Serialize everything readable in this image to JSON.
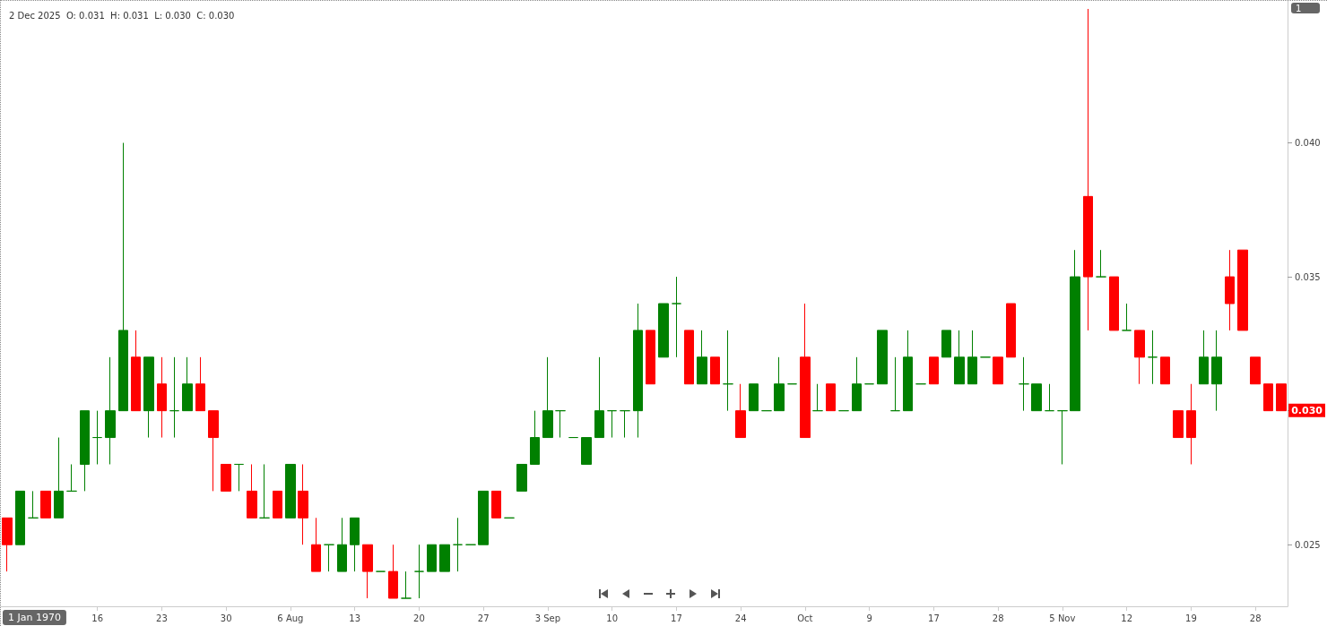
{
  "chart_data": {
    "type": "candlestick",
    "title": "2 Dec 2025  O: 0.031  H: 0.031  L: 0.030  C: 0.030",
    "categories": [
      null,
      null,
      null,
      null,
      null,
      null,
      null,
      "16",
      null,
      null,
      null,
      null,
      "23",
      null,
      null,
      null,
      null,
      "30",
      null,
      null,
      null,
      null,
      "6 Aug",
      null,
      null,
      null,
      null,
      "13",
      null,
      null,
      null,
      null,
      "20",
      null,
      null,
      null,
      null,
      "27",
      null,
      null,
      null,
      null,
      "3 Sep",
      null,
      null,
      null,
      null,
      "10",
      null,
      null,
      null,
      null,
      "17",
      null,
      null,
      null,
      null,
      "24",
      null,
      null,
      null,
      null,
      "Oct",
      null,
      null,
      null,
      null,
      "9",
      null,
      null,
      null,
      null,
      "17",
      null,
      null,
      null,
      null,
      "28",
      null,
      null,
      null,
      null,
      "5 Nov",
      null,
      null,
      null,
      null,
      "12",
      null,
      null,
      null,
      null,
      "19",
      null,
      null,
      null,
      null,
      "28",
      null,
      null
    ],
    "ohlc": [
      [
        0.026,
        0.026,
        0.024,
        0.025
      ],
      [
        0.025,
        0.027,
        0.025,
        0.027
      ],
      [
        0.026,
        0.027,
        0.026,
        0.026
      ],
      [
        0.027,
        0.027,
        0.026,
        0.026
      ],
      [
        0.026,
        0.029,
        0.026,
        0.027
      ],
      [
        0.027,
        0.028,
        0.027,
        0.027
      ],
      [
        0.028,
        0.03,
        0.027,
        0.03
      ],
      [
        0.029,
        0.03,
        0.028,
        0.029
      ],
      [
        0.029,
        0.032,
        0.028,
        0.03
      ],
      [
        0.03,
        0.04,
        0.03,
        0.033
      ],
      [
        0.032,
        0.033,
        0.03,
        0.03
      ],
      [
        0.03,
        0.032,
        0.029,
        0.032
      ],
      [
        0.031,
        0.032,
        0.029,
        0.03
      ],
      [
        0.03,
        0.032,
        0.029,
        0.03
      ],
      [
        0.03,
        0.032,
        0.03,
        0.031
      ],
      [
        0.031,
        0.032,
        0.03,
        0.03
      ],
      [
        0.03,
        0.03,
        0.027,
        0.029
      ],
      [
        0.028,
        0.028,
        0.027,
        0.027
      ],
      [
        0.028,
        0.028,
        0.027,
        0.028
      ],
      [
        0.027,
        0.028,
        0.026,
        0.026
      ],
      [
        0.026,
        0.028,
        0.026,
        0.026
      ],
      [
        0.027,
        0.027,
        0.026,
        0.026
      ],
      [
        0.026,
        0.028,
        0.026,
        0.028
      ],
      [
        0.027,
        0.028,
        0.025,
        0.026
      ],
      [
        0.025,
        0.026,
        0.024,
        0.024
      ],
      [
        0.025,
        0.025,
        0.024,
        0.025
      ],
      [
        0.024,
        0.026,
        0.024,
        0.025
      ],
      [
        0.025,
        0.026,
        0.024,
        0.026
      ],
      [
        0.025,
        0.025,
        0.023,
        0.024
      ],
      [
        0.024,
        0.024,
        0.024,
        0.024
      ],
      [
        0.024,
        0.025,
        0.023,
        0.023
      ],
      [
        0.023,
        0.024,
        0.023,
        0.023
      ],
      [
        0.024,
        0.025,
        0.023,
        0.024
      ],
      [
        0.024,
        0.025,
        0.024,
        0.025
      ],
      [
        0.024,
        0.025,
        0.024,
        0.025
      ],
      [
        0.025,
        0.026,
        0.024,
        0.025
      ],
      [
        0.025,
        0.025,
        0.025,
        0.025
      ],
      [
        0.025,
        0.027,
        0.025,
        0.027
      ],
      [
        0.027,
        0.027,
        0.026,
        0.026
      ],
      [
        0.026,
        0.026,
        0.026,
        0.026
      ],
      [
        0.027,
        0.028,
        0.027,
        0.028
      ],
      [
        0.028,
        0.03,
        0.028,
        0.029
      ],
      [
        0.029,
        0.032,
        0.029,
        0.03
      ],
      [
        0.03,
        0.03,
        0.029,
        0.03
      ],
      [
        0.029,
        0.029,
        0.029,
        0.029
      ],
      [
        0.028,
        0.029,
        0.028,
        0.029
      ],
      [
        0.029,
        0.032,
        0.029,
        0.03
      ],
      [
        0.03,
        0.03,
        0.029,
        0.03
      ],
      [
        0.03,
        0.03,
        0.029,
        0.03
      ],
      [
        0.03,
        0.034,
        0.029,
        0.033
      ],
      [
        0.033,
        0.033,
        0.031,
        0.031
      ],
      [
        0.032,
        0.034,
        0.032,
        0.034
      ],
      [
        0.034,
        0.035,
        0.032,
        0.034
      ],
      [
        0.033,
        0.033,
        0.031,
        0.031
      ],
      [
        0.031,
        0.033,
        0.031,
        0.032
      ],
      [
        0.032,
        0.032,
        0.031,
        0.031
      ],
      [
        0.031,
        0.033,
        0.03,
        0.031
      ],
      [
        0.03,
        0.031,
        0.029,
        0.029
      ],
      [
        0.03,
        0.031,
        0.03,
        0.031
      ],
      [
        0.03,
        0.03,
        0.03,
        0.03
      ],
      [
        0.03,
        0.032,
        0.03,
        0.031
      ],
      [
        0.031,
        0.031,
        0.031,
        0.031
      ],
      [
        0.032,
        0.034,
        0.029,
        0.029
      ],
      [
        0.03,
        0.031,
        0.03,
        0.03
      ],
      [
        0.031,
        0.031,
        0.03,
        0.03
      ],
      [
        0.03,
        0.03,
        0.03,
        0.03
      ],
      [
        0.03,
        0.032,
        0.03,
        0.031
      ],
      [
        0.031,
        0.031,
        0.031,
        0.031
      ],
      [
        0.031,
        0.033,
        0.031,
        0.033
      ],
      [
        0.03,
        0.032,
        0.03,
        0.03
      ],
      [
        0.03,
        0.033,
        0.03,
        0.032
      ],
      [
        0.031,
        0.031,
        0.031,
        0.031
      ],
      [
        0.032,
        0.032,
        0.031,
        0.031
      ],
      [
        0.032,
        0.033,
        0.032,
        0.033
      ],
      [
        0.031,
        0.033,
        0.031,
        0.032
      ],
      [
        0.031,
        0.033,
        0.031,
        0.032
      ],
      [
        0.032,
        0.032,
        0.032,
        0.032
      ],
      [
        0.032,
        0.032,
        0.031,
        0.031
      ],
      [
        0.034,
        0.034,
        0.032,
        0.032
      ],
      [
        0.031,
        0.032,
        0.03,
        0.031
      ],
      [
        0.03,
        0.031,
        0.03,
        0.031
      ],
      [
        0.03,
        0.031,
        0.03,
        0.03
      ],
      [
        0.03,
        0.03,
        0.028,
        0.03
      ],
      [
        0.03,
        0.036,
        0.03,
        0.035
      ],
      [
        0.038,
        0.045,
        0.033,
        0.035
      ],
      [
        0.035,
        0.036,
        0.035,
        0.035
      ],
      [
        0.035,
        0.035,
        0.033,
        0.033
      ],
      [
        0.033,
        0.034,
        0.033,
        0.033
      ],
      [
        0.033,
        0.033,
        0.031,
        0.032
      ],
      [
        0.032,
        0.033,
        0.031,
        0.032
      ],
      [
        0.032,
        0.032,
        0.031,
        0.031
      ],
      [
        0.03,
        0.03,
        0.029,
        0.029
      ],
      [
        0.03,
        0.031,
        0.028,
        0.029
      ],
      [
        0.031,
        0.033,
        0.031,
        0.032
      ],
      [
        0.031,
        0.033,
        0.03,
        0.032
      ],
      [
        0.035,
        0.036,
        0.033,
        0.034
      ],
      [
        0.036,
        0.036,
        0.033,
        0.033
      ],
      [
        0.032,
        0.032,
        0.031,
        0.031
      ],
      [
        0.031,
        0.031,
        0.03,
        0.03
      ],
      [
        0.031,
        0.031,
        0.03,
        0.03
      ]
    ],
    "colors": [
      "#ff0000",
      "#008000",
      "#008000",
      "#ff0000",
      "#008000",
      "#008000",
      "#008000",
      "#008000",
      "#008000",
      "#008000",
      "#ff0000",
      "#008000",
      "#ff0000",
      "#008000",
      "#008000",
      "#ff0000",
      "#ff0000",
      "#ff0000",
      "#008000",
      "#ff0000",
      "#008000",
      "#ff0000",
      "#008000",
      "#ff0000",
      "#ff0000",
      "#008000",
      "#008000",
      "#008000",
      "#ff0000",
      "#008000",
      "#ff0000",
      "#008000",
      "#008000",
      "#008000",
      "#008000",
      "#008000",
      "#008000",
      "#008000",
      "#ff0000",
      "#008000",
      "#008000",
      "#008000",
      "#008000",
      "#008000",
      "#008000",
      "#008000",
      "#008000",
      "#008000",
      "#008000",
      "#008000",
      "#ff0000",
      "#008000",
      "#008000",
      "#ff0000",
      "#008000",
      "#ff0000",
      "#008000",
      "#ff0000",
      "#008000",
      "#008000",
      "#008000",
      "#008000",
      "#ff0000",
      "#008000",
      "#ff0000",
      "#008000",
      "#008000",
      "#008000",
      "#008000",
      "#008000",
      "#008000",
      "#008000",
      "#ff0000",
      "#008000",
      "#008000",
      "#008000",
      "#008000",
      "#ff0000",
      "#ff0000",
      "#008000",
      "#008000",
      "#008000",
      "#008000",
      "#008000",
      "#ff0000",
      "#008000",
      "#ff0000",
      "#008000",
      "#ff0000",
      "#008000",
      "#ff0000",
      "#ff0000",
      "#ff0000",
      "#008000",
      "#008000",
      "#ff0000",
      "#ff0000",
      "#ff0000",
      "#ff0000",
      "#ff0000"
    ],
    "ylim": [
      0.0227,
      0.0453
    ],
    "yticks": [
      {
        "value": 0.025,
        "label": "0.025"
      },
      {
        "value": 0.03,
        "label": null
      },
      {
        "value": 0.035,
        "label": "0.035"
      },
      {
        "value": 0.04,
        "label": "0.040"
      }
    ],
    "annotations": [
      "1 Jan 1970",
      "1",
      {
        "text": "0.030",
        "y": 0.03
      }
    ],
    "grid": false
  }
}
